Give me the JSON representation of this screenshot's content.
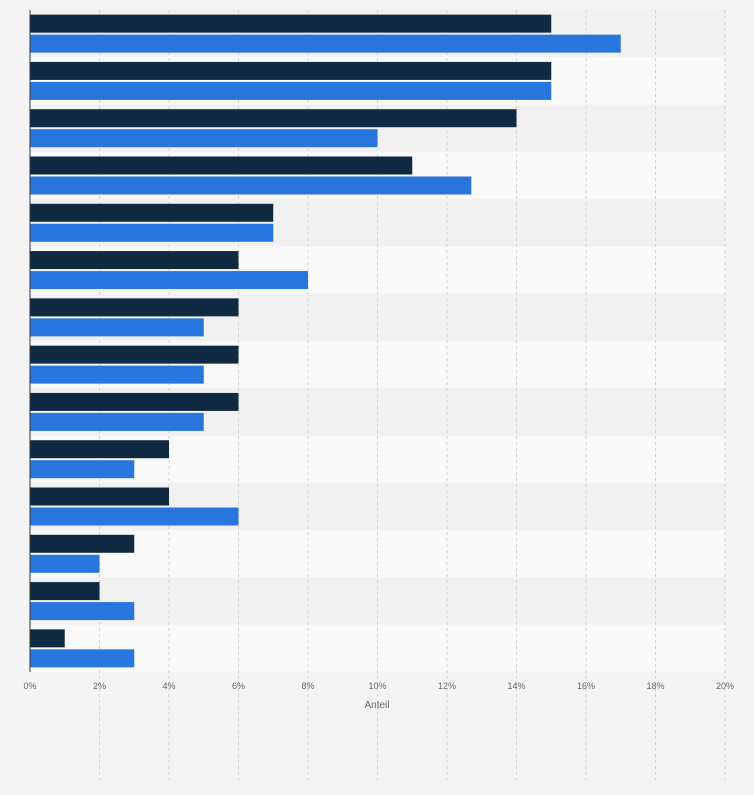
{
  "chart_data": {
    "type": "bar",
    "orientation": "horizontal",
    "categories": [
      "",
      "",
      "",
      "",
      "",
      "",
      "",
      "",
      "",
      "",
      "",
      "",
      "",
      ""
    ],
    "series": [
      {
        "values": [
          15,
          15,
          14,
          11,
          7,
          6,
          6,
          6,
          6,
          4,
          4,
          3,
          2,
          1
        ]
      },
      {
        "values": [
          17,
          15,
          10,
          12.7,
          7,
          8,
          5,
          5,
          5,
          3,
          6,
          2,
          3,
          3
        ]
      }
    ],
    "xlabel": "Anteil",
    "ylabel": "",
    "xlim": [
      0,
      20
    ],
    "xticks": [
      "0%",
      "2%",
      "4%",
      "6%",
      "8%",
      "10%",
      "12%",
      "14%",
      "16%",
      "18%",
      "20%"
    ],
    "grid": true,
    "legend": "none",
    "colors": {
      "series": [
        "#102a43",
        "#2876dd"
      ],
      "background": "#f4f4f4",
      "band_light": "#f9f9f9",
      "band_dark": "#f1f1f1",
      "grid": "#d2d2d2",
      "axis": "#333333",
      "tick_text": "#666666"
    }
  }
}
